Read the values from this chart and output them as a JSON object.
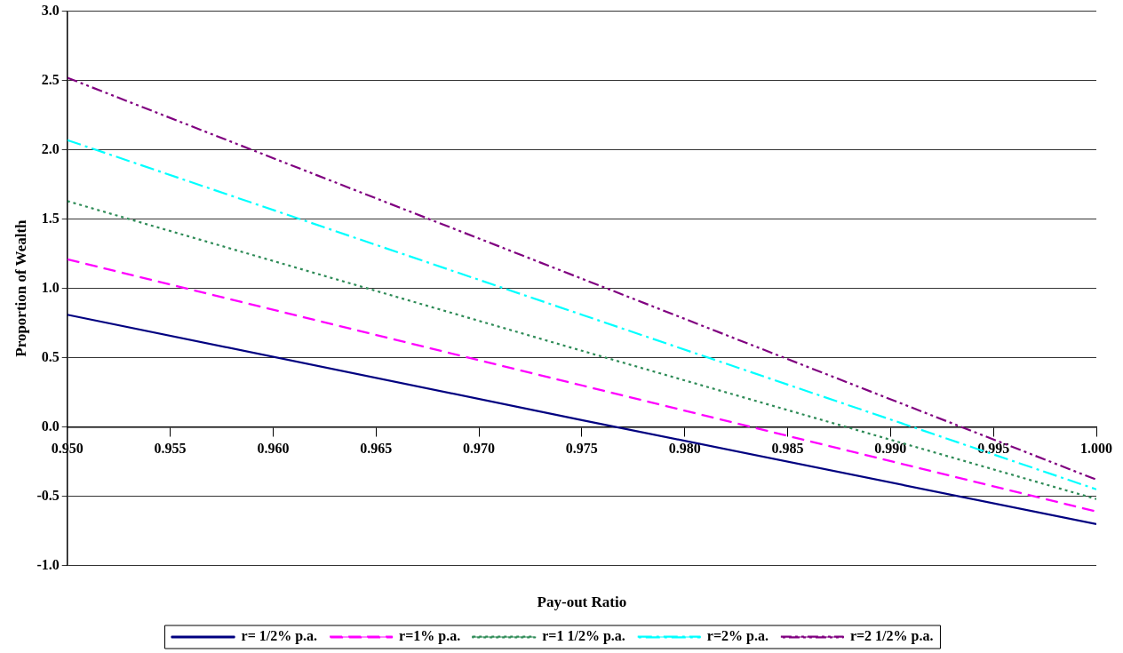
{
  "chart_data": {
    "type": "line",
    "xlabel": "Pay-out Ratio",
    "ylabel": "Proportion of Wealth",
    "x": [
      0.95,
      0.975,
      1.0
    ],
    "series": [
      {
        "name": "r= 1/2% p.a.",
        "color": "#000080",
        "line_style": "solid",
        "values": [
          0.81,
          0.05,
          -0.7
        ]
      },
      {
        "name": "r=1% p.a.",
        "color": "#ff00ff",
        "line_style": "dashed",
        "values": [
          1.21,
          0.3,
          -0.61
        ]
      },
      {
        "name": "r=1 1/2% p.a.",
        "color": "#2e8b57",
        "line_style": "dotted",
        "values": [
          1.63,
          0.55,
          -0.52
        ]
      },
      {
        "name": "r=2% p.a.",
        "color": "#00ffff",
        "line_style": "dashdot",
        "values": [
          2.07,
          0.81,
          -0.45
        ]
      },
      {
        "name": "r=2 1/2% p.a.",
        "color": "#800080",
        "line_style": "dashdotdot",
        "values": [
          2.52,
          1.07,
          -0.38
        ]
      }
    ],
    "xlim": [
      0.95,
      1.0
    ],
    "xticks": [
      {
        "value": 0.95,
        "label": "0.950"
      },
      {
        "value": 0.955,
        "label": "0.955"
      },
      {
        "value": 0.96,
        "label": "0.960"
      },
      {
        "value": 0.965,
        "label": "0.965"
      },
      {
        "value": 0.97,
        "label": "0.970"
      },
      {
        "value": 0.975,
        "label": "0.975"
      },
      {
        "value": 0.98,
        "label": "0.980"
      },
      {
        "value": 0.985,
        "label": "0.985"
      },
      {
        "value": 0.99,
        "label": "0.990"
      },
      {
        "value": 0.995,
        "label": "0.995"
      },
      {
        "value": 1.0,
        "label": "1.000"
      }
    ],
    "ylim": [
      -1,
      3
    ],
    "yticks": [
      {
        "value": -1,
        "label": "-1.0"
      },
      {
        "value": -0.5,
        "label": "-0.5"
      },
      {
        "value": 0,
        "label": "0.0"
      },
      {
        "value": 0.5,
        "label": "0.5"
      },
      {
        "value": 1,
        "label": "1.0"
      },
      {
        "value": 1.5,
        "label": "1.5"
      },
      {
        "value": 2,
        "label": "2.0"
      },
      {
        "value": 2.5,
        "label": "2.5"
      },
      {
        "value": 3,
        "label": "3.0"
      }
    ],
    "grid": "y",
    "legend": "bottom",
    "marker": "none"
  }
}
